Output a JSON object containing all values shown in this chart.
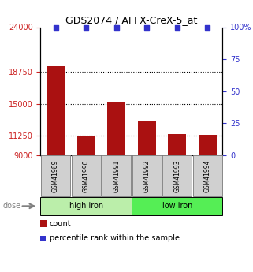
{
  "title": "GDS2074 / AFFX-CreX-5_at",
  "samples": [
    "GSM41989",
    "GSM41990",
    "GSM41991",
    "GSM41992",
    "GSM41993",
    "GSM41994"
  ],
  "counts": [
    19400,
    11300,
    15200,
    12900,
    11500,
    11400
  ],
  "percentile_ranks": [
    100,
    100,
    100,
    100,
    100,
    100
  ],
  "ymin": 9000,
  "ymax": 24000,
  "yticks": [
    9000,
    11250,
    15000,
    18750,
    24000
  ],
  "right_yticks": [
    0,
    25,
    50,
    75,
    100
  ],
  "right_yticklabels": [
    "0",
    "25",
    "50",
    "75",
    "100%"
  ],
  "bar_color": "#aa1111",
  "dot_color": "#3333cc",
  "group_colors": [
    "#bbeeaa",
    "#55ee55"
  ],
  "group_labels": [
    "high iron",
    "low iron"
  ],
  "group_starts": [
    0,
    3
  ],
  "group_ends": [
    3,
    6
  ],
  "dose_label": "dose",
  "legend_count_label": "count",
  "legend_pct_label": "percentile rank within the sample",
  "axis_label_color_left": "#cc2222",
  "axis_label_color_right": "#3333cc",
  "sample_box_color": "#d0d0d0",
  "sample_box_edge": "#888888",
  "title_fontsize": 9,
  "tick_fontsize": 7,
  "sample_fontsize": 5.5,
  "group_fontsize": 7,
  "legend_fontsize": 7
}
